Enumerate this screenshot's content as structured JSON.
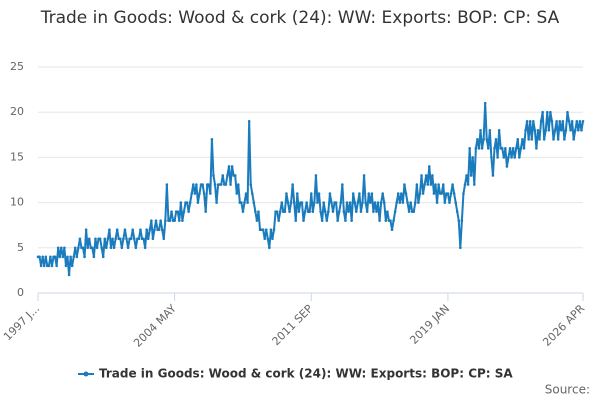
{
  "chart_data": {
    "type": "line",
    "title": "Trade in Goods: Wood & cork (24): WW: Exports: BOP: CP: SA",
    "source": "Source:",
    "categories": [
      "1997 J...",
      null,
      null,
      null,
      null,
      null,
      null,
      null,
      null,
      null,
      null,
      null,
      null,
      null,
      null,
      null,
      null,
      null,
      null,
      null,
      null,
      null,
      null,
      null,
      null,
      null,
      null,
      null,
      null,
      null,
      null,
      null,
      null,
      null,
      null,
      null,
      null,
      null,
      null,
      null,
      null,
      null,
      null,
      null,
      null,
      null,
      null,
      null,
      null,
      null,
      null,
      null,
      null,
      null,
      null,
      null,
      null,
      null,
      null,
      null,
      null,
      null,
      null,
      null,
      null,
      null,
      null,
      null,
      null,
      null,
      null,
      null,
      null,
      null,
      null,
      null,
      null,
      null,
      null,
      null,
      null,
      null,
      null,
      null,
      null,
      null,
      null,
      null,
      "2004 MAY",
      null,
      null,
      null,
      null,
      null,
      null,
      null,
      null,
      null,
      null,
      null,
      null,
      null,
      null,
      null,
      null,
      null,
      null,
      null,
      null,
      null,
      null,
      null,
      null,
      null,
      null,
      null,
      null,
      null,
      null,
      null,
      null,
      null,
      null,
      null,
      null,
      null,
      null,
      null,
      null,
      null,
      null,
      null,
      null,
      null,
      null,
      null,
      null,
      null,
      null,
      null,
      null,
      null,
      null,
      null,
      null,
      null,
      null,
      null,
      null,
      null,
      null,
      null,
      null,
      null,
      null,
      null,
      null,
      null,
      null,
      null,
      null,
      null,
      null,
      null,
      null,
      null,
      null,
      null,
      null,
      null,
      null,
      null,
      null,
      null,
      null,
      null,
      "2011 SEP",
      null,
      null,
      null,
      null,
      null,
      null,
      null,
      null,
      null,
      null,
      null,
      null,
      null,
      null,
      null,
      null,
      null,
      null,
      null,
      null,
      null,
      null,
      null,
      null,
      null,
      null,
      null,
      null,
      null,
      null,
      null,
      null,
      null,
      null,
      null,
      null,
      null,
      null,
      null,
      null,
      null,
      null,
      null,
      null,
      null,
      null,
      null,
      null,
      null,
      null,
      null,
      null,
      null,
      null,
      null,
      null,
      null,
      null,
      null,
      null,
      null,
      null,
      null,
      null,
      null,
      null,
      null,
      null,
      null,
      null,
      null,
      null,
      null,
      null,
      null,
      null,
      null,
      null,
      null,
      null,
      null,
      null,
      null,
      null,
      null,
      null,
      null,
      "2019 JAN",
      null,
      null,
      null,
      null,
      null,
      null,
      null,
      null,
      null,
      null,
      null,
      null,
      null,
      null,
      null,
      null,
      null,
      null,
      null,
      null,
      null,
      null,
      null,
      null,
      null,
      null,
      null,
      null,
      null,
      null,
      null,
      null,
      null,
      null,
      null,
      null,
      null,
      null,
      null,
      null,
      null,
      null,
      null,
      null,
      null,
      null,
      null,
      null,
      null,
      null,
      null,
      null,
      null,
      null,
      null,
      null,
      null,
      null,
      null,
      null,
      null,
      null,
      null,
      null,
      null,
      null,
      null,
      null,
      null,
      null,
      null,
      null,
      null,
      null,
      null,
      null,
      null,
      null,
      null,
      null,
      null,
      null,
      null,
      null,
      null,
      null,
      "2026 APR"
    ],
    "series": [
      {
        "name": "Trade in Goods: Wood & cork (24): WW: Exports: BOP: CP: SA",
        "color": "#1a7bbd",
        "values": [
          4,
          4,
          3,
          4,
          3,
          4,
          3,
          3,
          4,
          3,
          4,
          4,
          3,
          5,
          4,
          5,
          4,
          5,
          3,
          4,
          2,
          4,
          3,
          4,
          5,
          4,
          5,
          6,
          5,
          5,
          4,
          7,
          5,
          6,
          5,
          5,
          4,
          6,
          5,
          6,
          6,
          5,
          4,
          6,
          5,
          6,
          7,
          5,
          6,
          5,
          6,
          7,
          6,
          6,
          5,
          6,
          7,
          6,
          5,
          6,
          6,
          7,
          6,
          5,
          6,
          6,
          7,
          6,
          6,
          5,
          7,
          6,
          7,
          8,
          6,
          7,
          8,
          7,
          7,
          8,
          7,
          6,
          8,
          12,
          8,
          8,
          9,
          8,
          8,
          9,
          9,
          8,
          10,
          8,
          9,
          10,
          10,
          9,
          10,
          11,
          12,
          11,
          12,
          10,
          11,
          12,
          12,
          11,
          9,
          12,
          12,
          11,
          17,
          13,
          12,
          10,
          12,
          12,
          12,
          13,
          12,
          12,
          13,
          14,
          12,
          14,
          13,
          13,
          11,
          12,
          10,
          10,
          9,
          10,
          11,
          10,
          19,
          12,
          11,
          10,
          9,
          8,
          9,
          7,
          7,
          7,
          6,
          7,
          6,
          5,
          7,
          6,
          7,
          9,
          9,
          8,
          9,
          10,
          9,
          9,
          11,
          10,
          9,
          10,
          12,
          10,
          8,
          11,
          9,
          10,
          10,
          8,
          9,
          10,
          9,
          9,
          11,
          9,
          10,
          13,
          10,
          11,
          9,
          8,
          10,
          9,
          8,
          9,
          11,
          10,
          9,
          10,
          10,
          8,
          9,
          10,
          12,
          9,
          8,
          10,
          9,
          10,
          8,
          11,
          10,
          9,
          10,
          11,
          9,
          10,
          13,
          10,
          9,
          11,
          10,
          11,
          9,
          10,
          9,
          10,
          8,
          10,
          11,
          10,
          8,
          9,
          8,
          8,
          7,
          8,
          9,
          10,
          11,
          10,
          11,
          10,
          12,
          11,
          10,
          9,
          10,
          9,
          9,
          10,
          12,
          10,
          11,
          13,
          11,
          12,
          13,
          12,
          14,
          12,
          13,
          11,
          12,
          10,
          12,
          11,
          11,
          12,
          10,
          11,
          11,
          10,
          11,
          12,
          11,
          10,
          9,
          8,
          5,
          8,
          11,
          12,
          13,
          12,
          16,
          13,
          15,
          12,
          16,
          17,
          16,
          18,
          16,
          17,
          21,
          17,
          16,
          18,
          15,
          13,
          16,
          17,
          15,
          18,
          16,
          16,
          15,
          16,
          14,
          15,
          16,
          15,
          16,
          15,
          16,
          17,
          15,
          16,
          17,
          16,
          18,
          19,
          17,
          19,
          17,
          19,
          18,
          16,
          18,
          17,
          19,
          20,
          17,
          18,
          20,
          18,
          20,
          19,
          17,
          18,
          19,
          17,
          19,
          18,
          19,
          17,
          18,
          20,
          19,
          18,
          19,
          17,
          18,
          19,
          18,
          19,
          18,
          19
        ]
      }
    ],
    "ylim": [
      0,
      25
    ],
    "yticks": [
      0,
      5,
      10,
      15,
      20,
      25
    ],
    "grid": true
  }
}
